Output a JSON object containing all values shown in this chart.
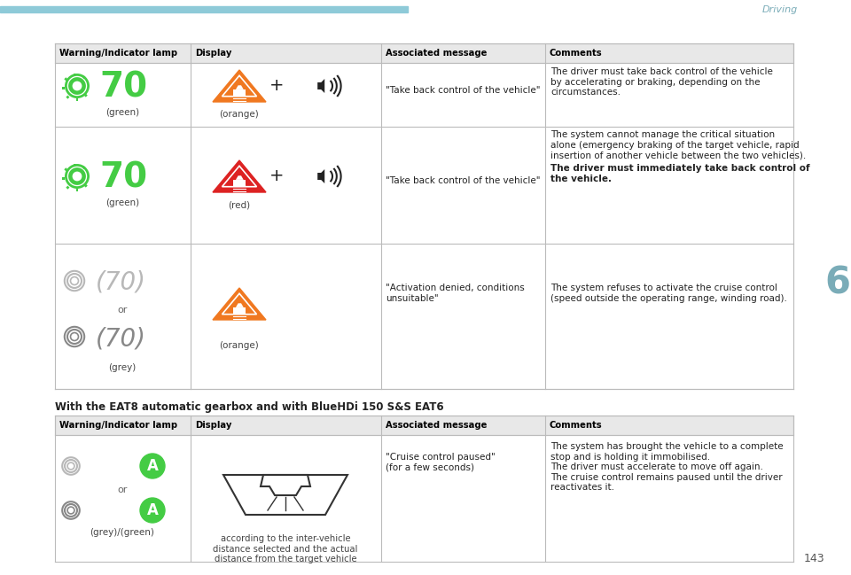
{
  "page_title": "Driving",
  "page_number": "143",
  "section_label": "6",
  "bg_color": "#ffffff",
  "header_bg": "#e8e8e8",
  "table_border": "#bbbbbb",
  "blue_bar_color": "#8ecad8",
  "driving_text_color": "#7aacb8",
  "subtitle": "With the EAT8 automatic gearbox and with BlueHDi 150 S&S EAT6",
  "t1_col_headers": [
    "Warning/Indicator lamp",
    "Display",
    "Associated message",
    "Comments"
  ],
  "t2_col_headers": [
    "Warning/Indicator lamp",
    "Display",
    "Associated message",
    "Comments"
  ],
  "orange_tri": "#f07820",
  "red_tri": "#dd2222",
  "green_lamp": "#44cc44",
  "grey_lamp": "#b0b0b0",
  "dark_grey_lamp": "#888888",
  "green_circle": "#44cc44",
  "row1_msg": "\"Take back control of the vehicle\"",
  "row1_comment": "The driver must take back control of the vehicle\nby accelerating or braking, depending on the\ncircumstances.",
  "row2_msg": "\"Take back control of the vehicle\"",
  "row2_comment_normal": "The system cannot manage the critical situation\nalone (emergency braking of the target vehicle, rapid\ninsertion of another vehicle between the two vehicles).",
  "row2_comment_bold": "The driver must immediately take back control of\nthe vehicle.",
  "row3_msg": "\"Activation denied, conditions\nunsuitable\"",
  "row3_comment": "The system refuses to activate the cruise control\n(speed outside the operating range, winding road).",
  "row4_msg": "\"Cruise control paused\"\n(for a few seconds)",
  "row4_comment": "The system has brought the vehicle to a complete\nstop and is holding it immobilised.\nThe driver must accelerate to move off again.\nThe cruise control remains paused until the driver\nreactivates it.",
  "row4_display_note": "according to the inter-vehicle\ndistance selected and the actual\ndistance from the target vehicle"
}
